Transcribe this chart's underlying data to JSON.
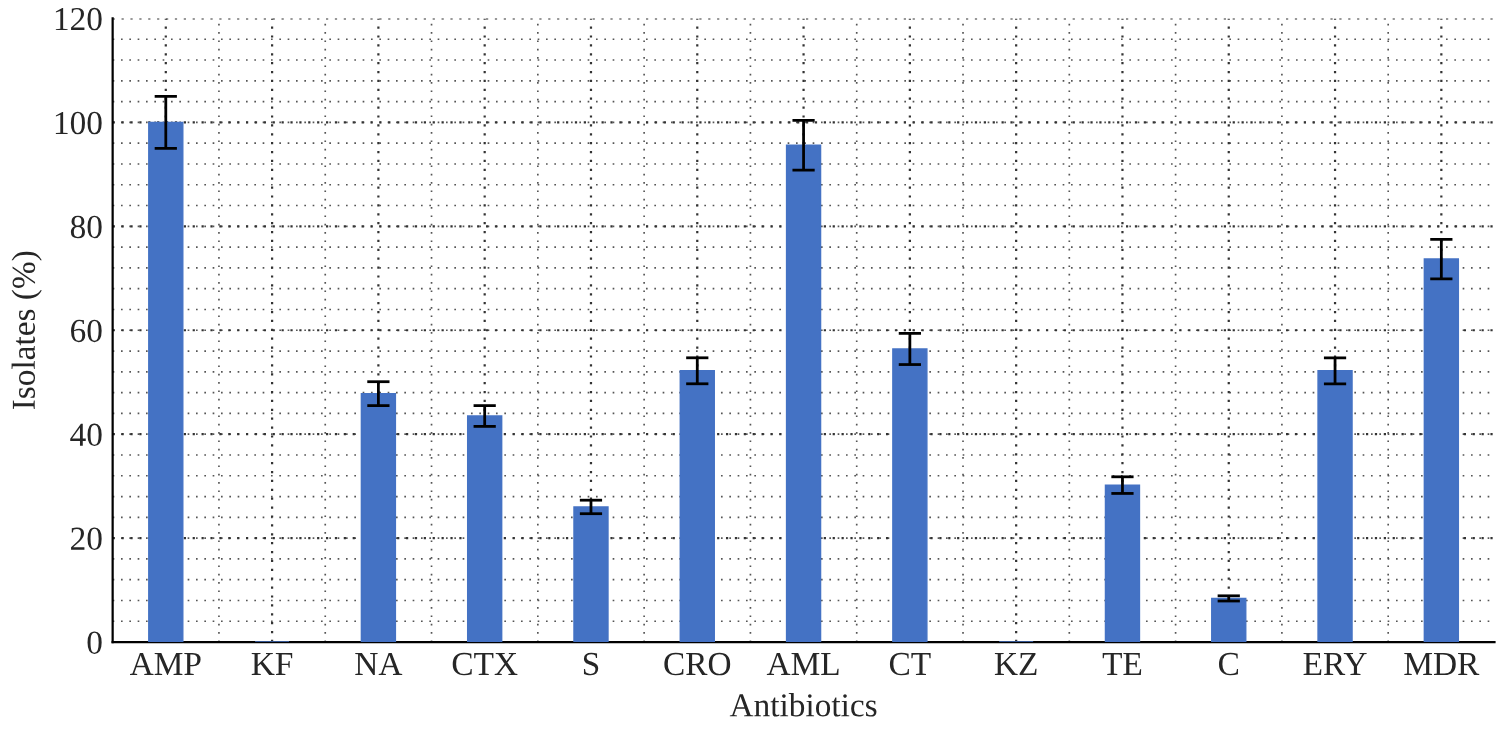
{
  "chart_data": {
    "type": "bar",
    "xlabel": "Antibiotics",
    "ylabel": "Isolates (%)",
    "categories": [
      "AMP",
      "KF",
      "NA",
      "CTX",
      "S",
      "CRO",
      "AML",
      "CT",
      "KZ",
      "TE",
      "C",
      "ERY",
      "MDR"
    ],
    "values": [
      100,
      0,
      47.8,
      43.5,
      26,
      52.2,
      95.6,
      56.4,
      0,
      30.2,
      8.4,
      52.2,
      73.7
    ],
    "errors": [
      5,
      null,
      2.3,
      2,
      1.3,
      2.5,
      4.8,
      3,
      null,
      1.6,
      0.5,
      2.5,
      3.8
    ],
    "color": "#4472c4",
    "ylim": [
      0,
      120
    ],
    "yticks": [
      0,
      20,
      40,
      60,
      80,
      100,
      120
    ],
    "grid": true
  }
}
